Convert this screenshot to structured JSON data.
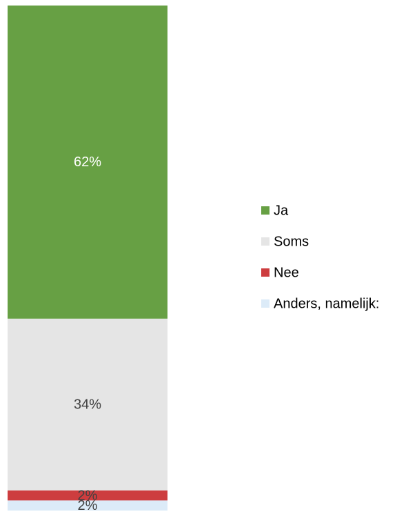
{
  "chart_data": {
    "type": "stacked-bar",
    "categories": [
      null
    ],
    "series": [
      {
        "name": "Ja",
        "color": "#67a044",
        "values": [
          62
        ],
        "value_labels": [
          "62%"
        ]
      },
      {
        "name": "Soms",
        "color": "#e5e5e5",
        "values": [
          34
        ],
        "value_labels": [
          "34%"
        ]
      },
      {
        "name": "Nee",
        "color": "#cd3d3f",
        "values": [
          2
        ],
        "value_labels": [
          "2%"
        ]
      },
      {
        "name": "Anders, namelijk:",
        "color": "#dcebf8",
        "values": [
          2
        ],
        "value_labels": [
          "2%"
        ]
      }
    ],
    "legend": "right"
  }
}
